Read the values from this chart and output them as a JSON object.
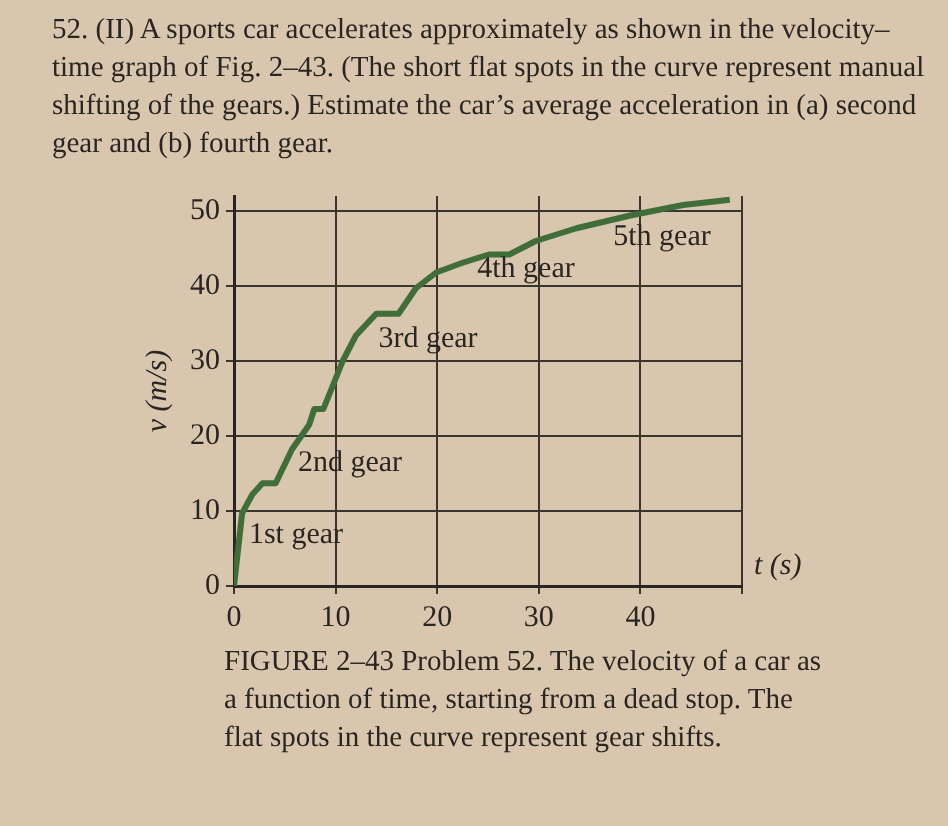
{
  "chart_data": {
    "type": "line",
    "title": "52. (II) A sports car accelerates approximately as shown in the velocity–time graph of Fig. 2–43. (The short flat spots in the curve represent manual shifting of the gears.) Estimate the car’s average acceleration in (a) second gear and (b) fourth gear.",
    "xlabel": "t (s)",
    "ylabel": "v (m/s)",
    "x": [
      0,
      0.8,
      1.8,
      2.8,
      4.1,
      5.7,
      7.4,
      7.9,
      8.8,
      10.7,
      12,
      14,
      16.2,
      17.9,
      19.9,
      22.5,
      25.1,
      27.1,
      29.7,
      33.7,
      39,
      44.2,
      48.8
    ],
    "series": [
      {
        "color": "#3f6e38",
        "values": [
          0,
          9.7,
          12.2,
          13.7,
          13.7,
          18.2,
          21.5,
          23.6,
          23.6,
          30,
          33.4,
          36.3,
          36.3,
          39.7,
          41.8,
          43.1,
          44.2,
          44.2,
          46,
          47.7,
          49.4,
          50.8,
          51.5
        ]
      }
    ],
    "xlim": [
      0,
      50
    ],
    "xticks": [
      0,
      10,
      20,
      30,
      40,
      {
        "value": 50,
        "label": null
      }
    ],
    "ylim": [
      0,
      52
    ],
    "yticks": [
      0,
      10,
      20,
      30,
      40,
      50
    ],
    "grid": true,
    "marker": "none",
    "line_style": "solid",
    "legend": false,
    "annotations": [
      "1st gear",
      "2nd gear",
      "3rd gear",
      "4th gear",
      "5th gear",
      "FIGURE 2–43 Problem 52. The velocity of a car as a function of time, starting from a dead stop. The flat spots in the curve represent gear shifts."
    ]
  }
}
